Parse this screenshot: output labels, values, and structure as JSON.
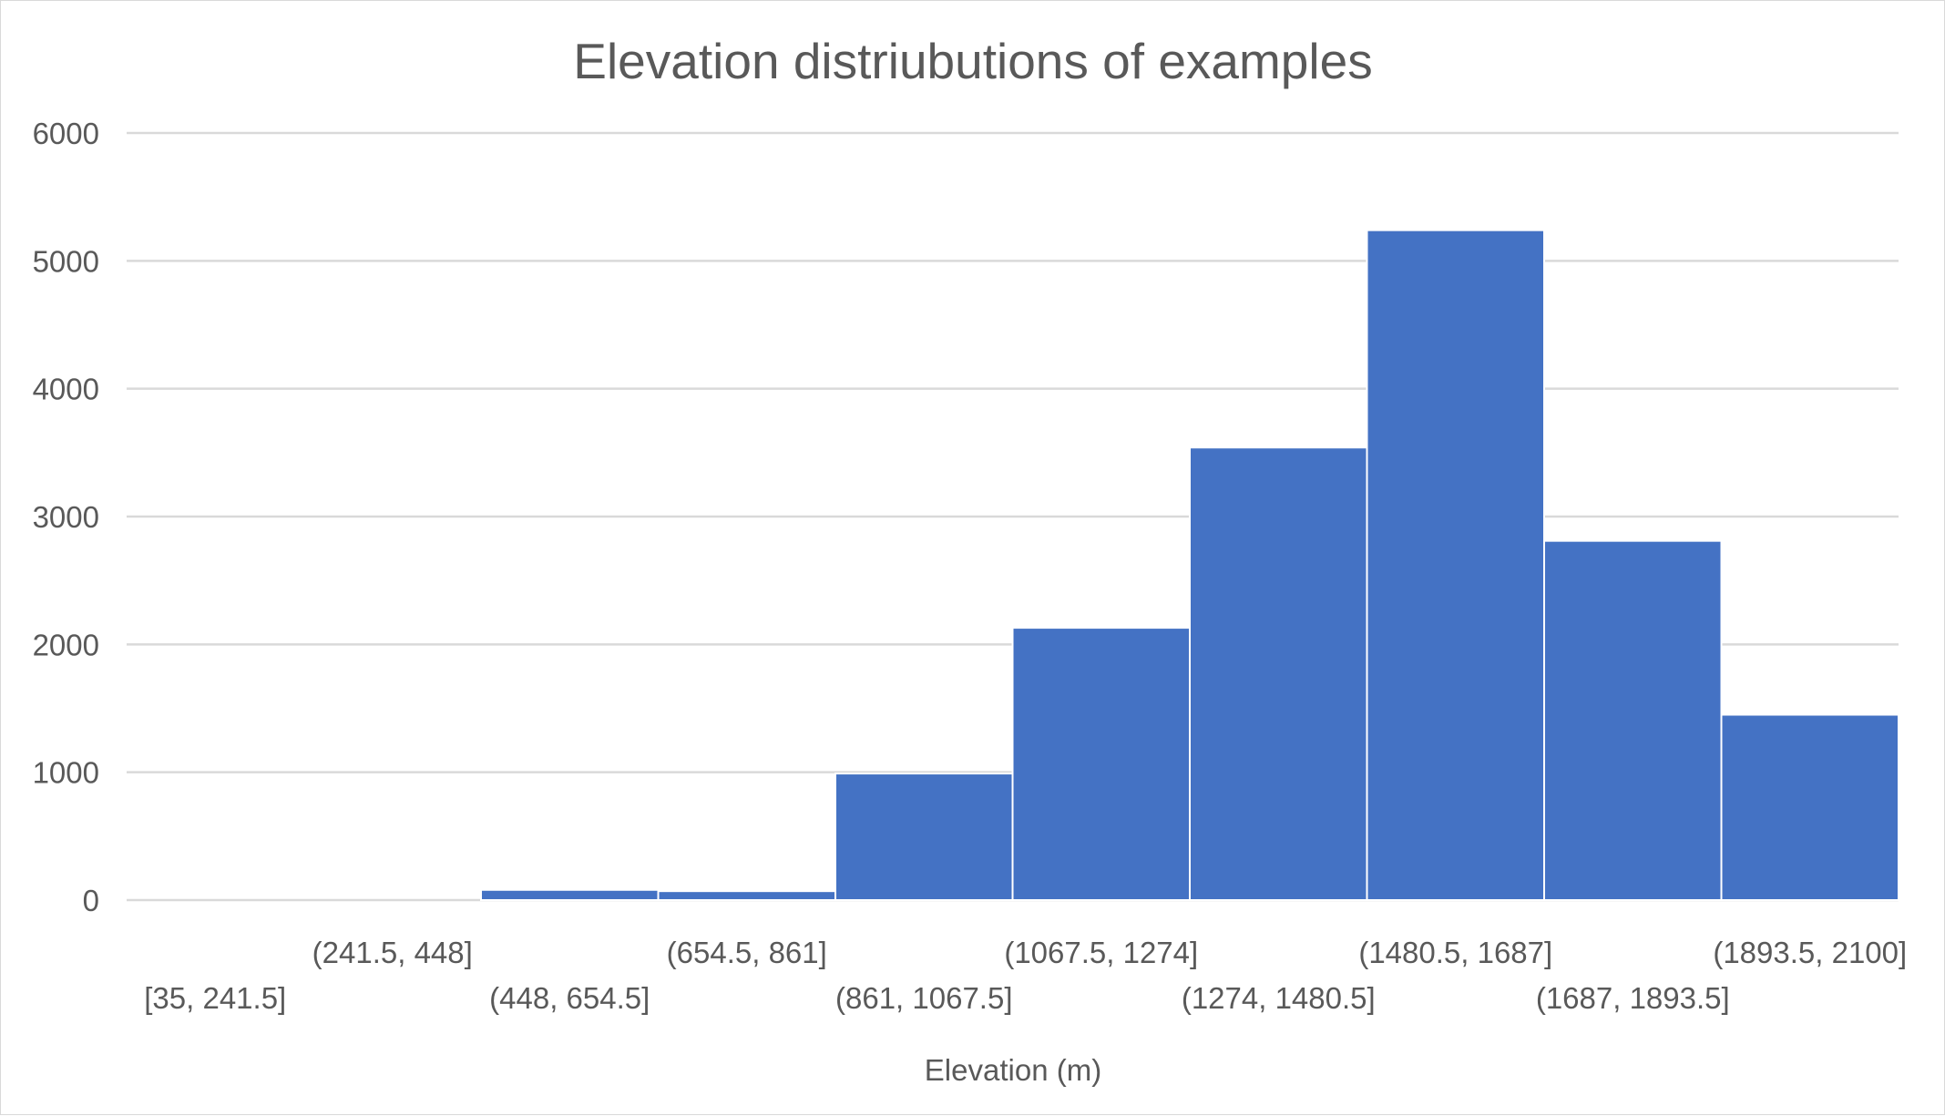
{
  "chart_data": {
    "type": "bar",
    "title": "Elevation distriubutions of examples",
    "xlabel": "Elevation (m)",
    "ylabel": "",
    "ylim": [
      0,
      6000
    ],
    "yticks": [
      "0",
      "1000",
      "2000",
      "3000",
      "4000",
      "5000",
      "6000"
    ],
    "categories": [
      "[35, 241.5]",
      "(241.5, 448]",
      "(448, 654.5]",
      "(654.5, 861]",
      "(861, 1067.5]",
      "(1067.5, 1274]",
      "(1274, 1480.5]",
      "(1480.5, 1687]",
      "(1687, 1893.5]",
      "(1893.5, 2100]"
    ],
    "values": [
      0,
      0,
      80,
      70,
      990,
      2130,
      3540,
      5240,
      2810,
      1450
    ],
    "grid": true,
    "bar_color": "#4472c4"
  }
}
